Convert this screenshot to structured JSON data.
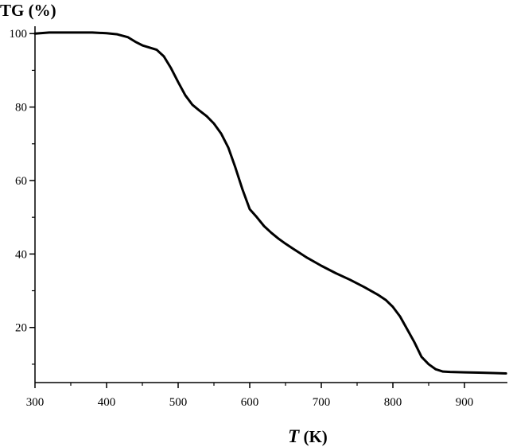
{
  "chart_data": {
    "type": "line",
    "ylabel": "TG (%)",
    "xlabel_var": "T",
    "xlabel_unit": " (K)",
    "xlim": [
      300,
      960
    ],
    "ylim": [
      5,
      102
    ],
    "x_ticks": [
      300,
      400,
      500,
      600,
      700,
      800,
      900
    ],
    "y_ticks": [
      20,
      40,
      60,
      80,
      100
    ],
    "grid": false,
    "line_color": "#000000",
    "series": [
      {
        "x": [
          300,
          320,
          350,
          380,
          400,
          415,
          430,
          440,
          450,
          460,
          470,
          480,
          490,
          500,
          510,
          520,
          530,
          540,
          550,
          560,
          570,
          580,
          590,
          600,
          610,
          620,
          630,
          640,
          650,
          660,
          680,
          700,
          720,
          740,
          760,
          780,
          790,
          800,
          810,
          820,
          830,
          840,
          850,
          860,
          870,
          880,
          900,
          920,
          940,
          958
        ],
        "y": [
          100.0,
          100.3,
          100.3,
          100.3,
          100.1,
          99.8,
          99.0,
          97.8,
          96.8,
          96.2,
          95.6,
          93.8,
          90.6,
          86.8,
          83.2,
          80.6,
          79.0,
          77.5,
          75.5,
          72.8,
          69.0,
          63.5,
          57.5,
          52.2,
          50.0,
          47.6,
          45.8,
          44.2,
          42.8,
          41.5,
          39.0,
          36.8,
          34.8,
          33.0,
          31.0,
          28.8,
          27.5,
          25.6,
          23.0,
          19.5,
          16.0,
          12.0,
          10.0,
          8.6,
          8.0,
          7.9,
          7.8,
          7.7,
          7.6,
          7.5
        ]
      }
    ]
  }
}
